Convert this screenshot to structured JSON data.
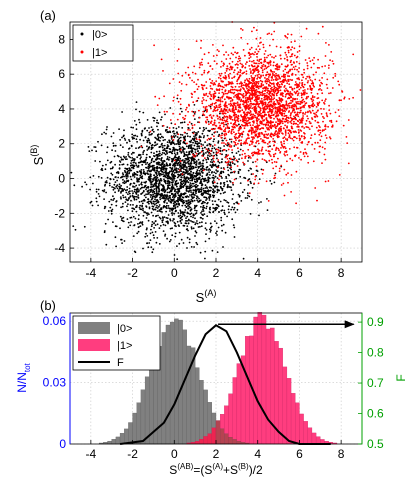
{
  "figure": {
    "panel_a_label": "(a)",
    "panel_b_label": "(b)"
  },
  "chart_data": [
    {
      "type": "scatter",
      "panel": "(a)",
      "xlabel_main": "S",
      "xlabel_sup": "(A)",
      "ylabel_main": "S",
      "ylabel_sup": "(B)",
      "xlim": [
        -5,
        9
      ],
      "ylim": [
        -4.8,
        9
      ],
      "xticks": [
        -4,
        -2,
        0,
        2,
        4,
        6,
        8
      ],
      "yticks": [
        -4,
        -2,
        0,
        2,
        4,
        6,
        8
      ],
      "grid": true,
      "legend_position": "top-left",
      "series": [
        {
          "name": "|0>",
          "color": "#000000",
          "center": [
            0,
            0
          ],
          "spread": [
            1.6,
            1.6
          ],
          "count": 2600
        },
        {
          "name": "|1>",
          "color": "#ff0000",
          "center": [
            4.2,
            4.2
          ],
          "spread": [
            1.6,
            1.6
          ],
          "count": 2600
        }
      ]
    },
    {
      "type": "bar",
      "panel": "(b)",
      "xlabel": "S(AB)=(S(A)+S(B))/2",
      "xlabel_parts": {
        "s1": "S",
        "sup1": "(AB)",
        "mid": "=(S",
        "sup2": "(A)",
        "mid2": "+S",
        "sup3": "(B)",
        "end": ")/2"
      },
      "ylabel_left_main": "N/N",
      "ylabel_left_sub": "tot",
      "ylabel_right": "F",
      "xlim": [
        -5,
        9
      ],
      "ylim_left": [
        0,
        0.064
      ],
      "ylim_right": [
        0.5,
        0.93
      ],
      "xticks": [
        -4,
        -2,
        0,
        2,
        4,
        6,
        8
      ],
      "yticks_left": [
        "0",
        "0.03",
        "0.06"
      ],
      "yticks_left_values": [
        0,
        0.03,
        0.06
      ],
      "yticks_right": [
        "0.5",
        "0.6",
        "0.7",
        "0.8",
        "0.9"
      ],
      "yticks_right_values": [
        0.5,
        0.6,
        0.7,
        0.8,
        0.9
      ],
      "left_axis_color": "#0000ff",
      "right_axis_color": "#00a000",
      "grid": true,
      "legend_position": "top-left",
      "series": [
        {
          "name": "|0>",
          "color": "#808080",
          "mean": 0,
          "sd": 1.13,
          "peak": 0.061
        },
        {
          "name": "|1>",
          "color": "#ff3d7f",
          "mean": 4.2,
          "sd": 1.13,
          "peak": 0.061
        },
        {
          "name": "F",
          "color": "#000000",
          "type": "line"
        }
      ],
      "histogram_bins": {
        "start": -4.6,
        "end": 8.6,
        "width": 0.2
      },
      "fidelity_curve": {
        "x": [
          -2.6,
          -1.5,
          -0.5,
          0.0,
          0.5,
          1.0,
          1.5,
          2.0,
          2.5,
          3.0,
          3.5,
          4.0,
          4.5,
          5.0,
          5.5,
          6.0,
          7.0,
          7.5
        ],
        "y": [
          0.5,
          0.51,
          0.57,
          0.63,
          0.71,
          0.79,
          0.86,
          0.89,
          0.87,
          0.8,
          0.72,
          0.64,
          0.58,
          0.54,
          0.51,
          0.5,
          0.5,
          0.5
        ]
      },
      "threshold_arrow": {
        "x_start": 2.1,
        "x_end": 8.6,
        "y": 0.893
      }
    }
  ]
}
